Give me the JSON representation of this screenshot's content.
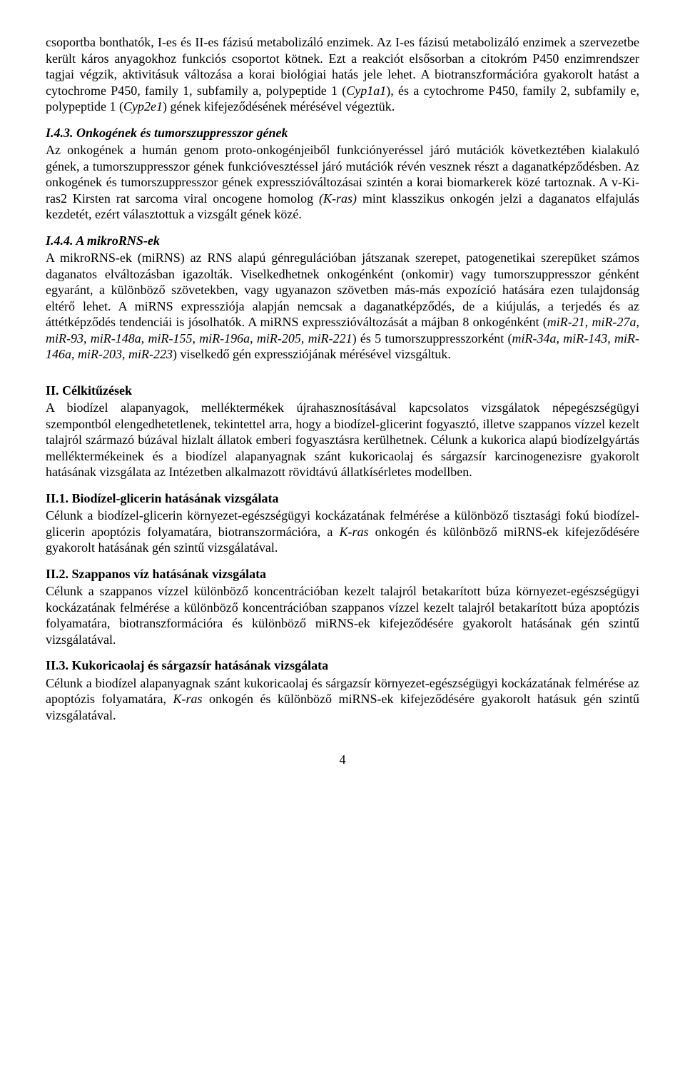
{
  "para_intro": "csoportba bonthatók, I-es és II-es fázisú metabolizáló enzimek. Az I-es fázisú metabolizáló enzimek a szervezetbe került káros anyagokhoz funkciós csoportot kötnek. Ezt a reakciót elsősorban a citokróm P450 enzimrendszer tagjai végzik, aktivitásuk változása a korai biológiai hatás jele lehet. A biotranszformációra gyakorolt hatást a cytochrome P450, family 1, subfamily a, polypeptide 1 (",
  "cyp1a1": "Cyp1a1",
  "para_intro2": "), és a cytochrome P450, family 2, subfamily e, polypeptide 1 (",
  "cyp2e1": "Cyp2e1",
  "para_intro3": ") gének kifejeződésének mérésével végeztük.",
  "h_I43": "I.4.3. Onkogének és tumorszuppresszor gének",
  "p_I43_a": "Az onkogének a humán genom proto-onkogénjeiből funkciónyeréssel járó mutációk következtében kialakuló gének, a tumorszuppresszor gének funkcióvesztéssel járó mutációk révén vesznek részt a daganatképződésben. Az onkogének és tumorszuppresszor gének expresszióváltozásai szintén a korai biomarkerek közé tartoznak. A v-Ki-ras2 Kirsten rat sarcoma viral oncogene homolog ",
  "kras_it": "(K-ras)",
  "p_I43_b": " mint klasszikus onkogén jelzi a daganatos elfajulás kezdetét, ezért választottuk a vizsgált gének közé.",
  "h_I44": "I.4.4. A mikroRNS-ek",
  "p_I44_a": "A mikroRNS-ek (miRNS) az RNS alapú génregulációban játszanak szerepet, patogenetikai szerepüket számos daganatos elváltozásban igazolták. Viselkedhetnek onkogénként (onkomir) vagy tumorszuppresszor génként egyaránt, a különböző szövetekben, vagy ugyanazon szövetben más-más expozíció hatására ezen tulajdonság eltérő lehet. A miRNS expressziója alapján nemcsak a daganatképződés, de a kiújulás, a terjedés és az áttétképződés tendenciái is jósolhatók. A miRNS expresszióváltozását a májban 8 onkogénként (",
  "mir_onko": "miR-21, miR-27a, miR-93, miR-148a, miR-155, miR-196a, miR-205, miR-221",
  "p_I44_b": ") és 5 tumorszuppresszorként (",
  "mir_ts": "miR-34a, miR-143, miR-146a, miR-203, miR-223",
  "p_I44_c": ") viselkedő gén expressziójának mérésével vizsgáltuk.",
  "h_II": "II. Célkitűzések",
  "p_II": "A biodízel alapanyagok, melléktermékek újrahasznosításával kapcsolatos vizsgálatok népegészségügyi szempontból elengedhetetlenek, tekintettel arra, hogy a biodízel-glicerint fogyasztó, illetve szappanos vízzel kezelt talajról származó búzával hizlalt állatok emberi fogyasztásra kerülhetnek. Célunk a kukorica alapú biodízelgyártás melléktermékeinek és a biodízel alapanyagnak szánt kukoricaolaj és sárgazsír karcinogenezisre gyakorolt hatásának vizsgálata az Intézetben alkalmazott rövidtávú állatkísérletes modellben.",
  "h_II1": "II.1. Biodízel-glicerin hatásának vizsgálata",
  "p_II1_a": "Célunk a biodízel-glicerin környezet-egészségügyi kockázatának felmérése a különböző tisztasági fokú biodízel-glicerin apoptózis folyamatára, biotranszormációra, a ",
  "kras2": "K-ras",
  "p_II1_b": " onkogén és különböző miRNS-ek kifejeződésére gyakorolt hatásának gén szintű vizsgálatával.",
  "h_II2": "II.2. Szappanos víz hatásának vizsgálata",
  "p_II2": "Célunk a szappanos vízzel különböző koncentrációban kezelt talajról betakarított búza környezet-egészségügyi kockázatának felmérése a különböző koncentrációban szappanos vízzel kezelt talajról betakarított búza apoptózis folyamatára, biotranszformációra és különböző miRNS-ek kifejeződésére gyakorolt hatásának gén szintű vizsgálatával.",
  "h_II3": "II.3. Kukoricaolaj és sárgazsír hatásának vizsgálata",
  "p_II3_a": "Célunk a biodízel alapanyagnak szánt kukoricaolaj és sárgazsír környezet-egészségügyi kockázatának felmérése az apoptózis folyamatára, ",
  "kras3": "K-ras",
  "p_II3_b": " onkogén és különböző miRNS-ek kifejeződésére gyakorolt hatásuk gén szintű vizsgálatával.",
  "page_number": "4"
}
